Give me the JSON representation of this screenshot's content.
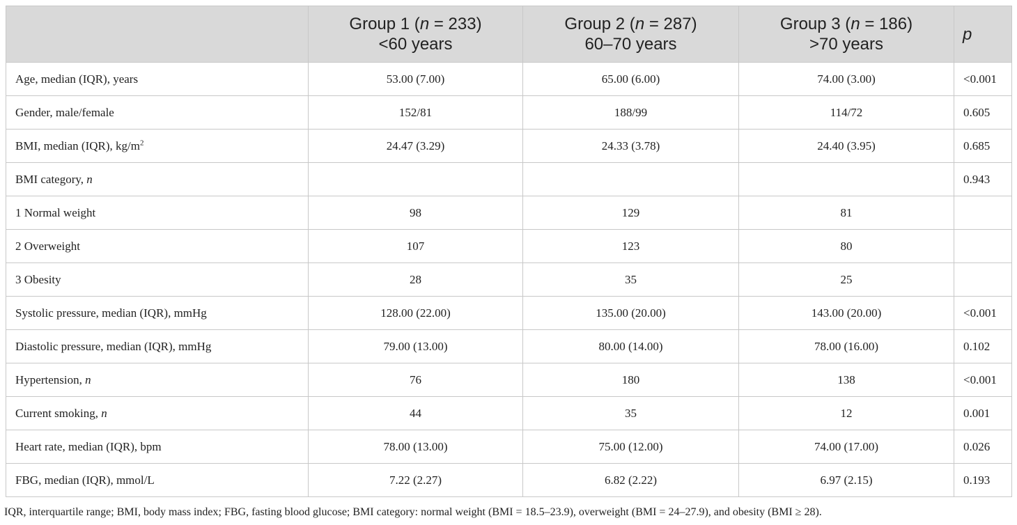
{
  "header": {
    "g1": {
      "line1_pre": "Group 1 (",
      "n_var": "n",
      "line1_post": " = 233)",
      "line2": "<60 years"
    },
    "g2": {
      "line1_pre": "Group 2 (",
      "n_var": "n",
      "line1_post": " = 287)",
      "line2": "60–70 years"
    },
    "g3": {
      "line1_pre": "Group 3 (",
      "n_var": "n",
      "line1_post": " = 186)",
      "line2": ">70 years"
    },
    "p": "p"
  },
  "rows": [
    {
      "label": "Age, median (IQR), years",
      "g1": "53.00 (7.00)",
      "g2": "65.00 (6.00)",
      "g3": "74.00 (3.00)",
      "p": "<0.001"
    },
    {
      "label": "Gender, male/female",
      "g1": "152/81",
      "g2": "188/99",
      "g3": "114/72",
      "p": "0.605"
    },
    {
      "label": "BMI, median (IQR), kg/m",
      "label_sup": "2",
      "g1": "24.47 (3.29)",
      "g2": "24.33 (3.78)",
      "g3": "24.40 (3.95)",
      "p": "0.685"
    },
    {
      "label": "BMI category, ",
      "label_italic": "n",
      "g1": "",
      "g2": "",
      "g3": "",
      "p": "0.943"
    },
    {
      "label": "1 Normal weight",
      "g1": "98",
      "g2": "129",
      "g3": "81",
      "p": ""
    },
    {
      "label": "2 Overweight",
      "g1": "107",
      "g2": "123",
      "g3": "80",
      "p": ""
    },
    {
      "label": "3 Obesity",
      "g1": "28",
      "g2": "35",
      "g3": "25",
      "p": ""
    },
    {
      "label": "Systolic pressure, median (IQR), mmHg",
      "g1": "128.00 (22.00)",
      "g2": "135.00 (20.00)",
      "g3": "143.00 (20.00)",
      "p": "<0.001"
    },
    {
      "label": "Diastolic pressure, median (IQR), mmHg",
      "g1": "79.00 (13.00)",
      "g2": "80.00 (14.00)",
      "g3": "78.00 (16.00)",
      "p": "0.102"
    },
    {
      "label": "Hypertension, ",
      "label_italic": "n",
      "g1": "76",
      "g2": "180",
      "g3": "138",
      "p": "<0.001"
    },
    {
      "label": "Current smoking, ",
      "label_italic": "n",
      "g1": "44",
      "g2": "35",
      "g3": "12",
      "p": "0.001"
    },
    {
      "label": "Heart rate, median (IQR), bpm",
      "g1": "78.00 (13.00)",
      "g2": "75.00 (12.00)",
      "g3": "74.00 (17.00)",
      "p": "0.026"
    },
    {
      "label": "FBG, median (IQR), mmol/L",
      "g1": "7.22 (2.27)",
      "g2": "6.82 (2.22)",
      "g3": "6.97 (2.15)",
      "p": "0.193"
    }
  ],
  "footnote": "IQR, interquartile range; BMI, body mass index; FBG, fasting blood glucose; BMI category: normal weight (BMI = 18.5–23.9), overweight (BMI = 24–27.9), and obesity (BMI ≥ 28)."
}
